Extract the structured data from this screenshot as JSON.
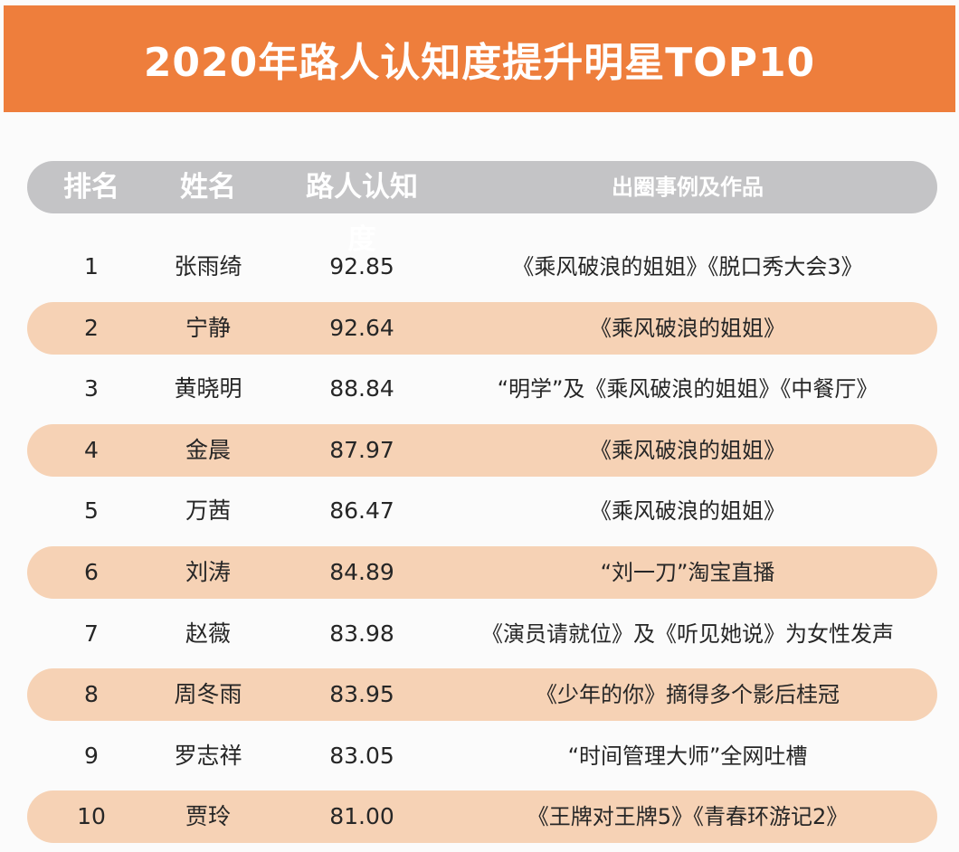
{
  "title": "2020年路人认知度提升明星TOP10",
  "columns": [
    "排名",
    "姓名",
    "路人认知度",
    "出圈事例及作品"
  ],
  "rows": [
    {
      "rank": "1",
      "name": "张雨绮",
      "score": "92.85",
      "works": "《乘风破浪的姐姐》《脱口秀大会3》"
    },
    {
      "rank": "2",
      "name": "宁静",
      "score": "92.64",
      "works": "《乘风破浪的姐姐》"
    },
    {
      "rank": "3",
      "name": "黄晓明",
      "score": "88.84",
      "works": "“明学”及《乘风破浪的姐姐》《中餐厅》"
    },
    {
      "rank": "4",
      "name": "金晨",
      "score": "87.97",
      "works": "《乘风破浪的姐姐》"
    },
    {
      "rank": "5",
      "name": "万茜",
      "score": "86.47",
      "works": "《乘风破浪的姐姐》"
    },
    {
      "rank": "6",
      "name": "刘涛",
      "score": "84.89",
      "works": "“刘一刀”淘宝直播"
    },
    {
      "rank": "7",
      "name": "赵薇",
      "score": "83.98",
      "works": "《演员请就位》及《听见她说》为女性发声"
    },
    {
      "rank": "8",
      "name": "周冬雨",
      "score": "83.95",
      "works": "《少年的你》摘得多个影后桂冠"
    },
    {
      "rank": "9",
      "name": "罗志祥",
      "score": "83.05",
      "works": "“时间管理大师”全网吐槽"
    },
    {
      "rank": "10",
      "name": "贾玲",
      "score": "81.00",
      "works": "《王牌对王牌5》《青春环游记2》"
    }
  ],
  "colors": {
    "banner": "#ee7e3c",
    "header": "#c4c4c6",
    "stripe": "#f6d2b5"
  }
}
